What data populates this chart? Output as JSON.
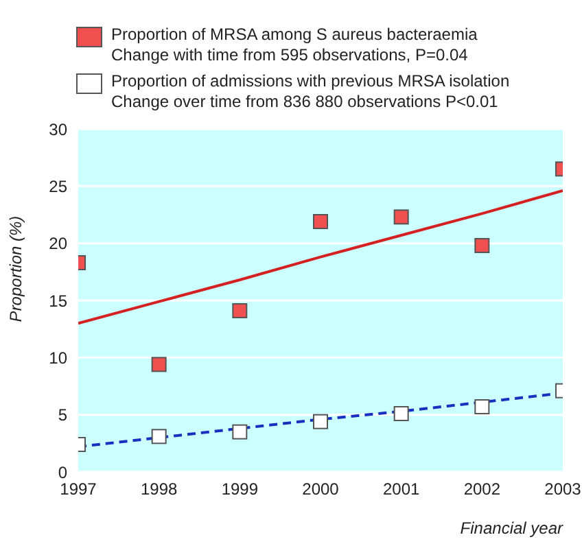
{
  "chart_data": {
    "type": "scatter",
    "xlabel": "Financial year",
    "ylabel": "Proportion (%)",
    "x": [
      1997,
      1998,
      1999,
      2000,
      2001,
      2002,
      2003
    ],
    "series": [
      {
        "name": "Proportion of MRSA among S aureus bacteraemia",
        "color": "#f05050",
        "values": [
          18.3,
          9.4,
          14.1,
          21.9,
          22.3,
          19.8,
          26.5
        ]
      },
      {
        "name": "Proportion of admissions with previous MRSA isolation",
        "color": "#ffffff",
        "values": [
          2.4,
          3.1,
          3.5,
          4.4,
          5.1,
          5.7,
          7.1
        ]
      },
      {
        "type": "line",
        "color": "#d42020",
        "values": [
          13.0,
          14.9,
          16.8,
          18.8,
          20.7,
          22.6,
          24.6
        ],
        "line_style": "solid",
        "marker": "none"
      },
      {
        "type": "line",
        "color": "#1a2ec0",
        "values": [
          2.2,
          3.0,
          3.8,
          4.6,
          5.3,
          6.1,
          6.9
        ],
        "line_style": "dashed",
        "marker": "none"
      }
    ],
    "annotations": [
      "Change with time from 595 observations, P=0.04",
      "Change over time from 836 880 observations P<0.01"
    ],
    "xlim": [
      1997,
      2003
    ],
    "xticks": [
      1997,
      1998,
      1999,
      2000,
      2001,
      2002,
      2003
    ],
    "ylim": [
      0,
      30
    ],
    "yticks": [
      0,
      5,
      10,
      15,
      20,
      25,
      30
    ],
    "grid": "y",
    "marker": "square",
    "legend": "top"
  }
}
